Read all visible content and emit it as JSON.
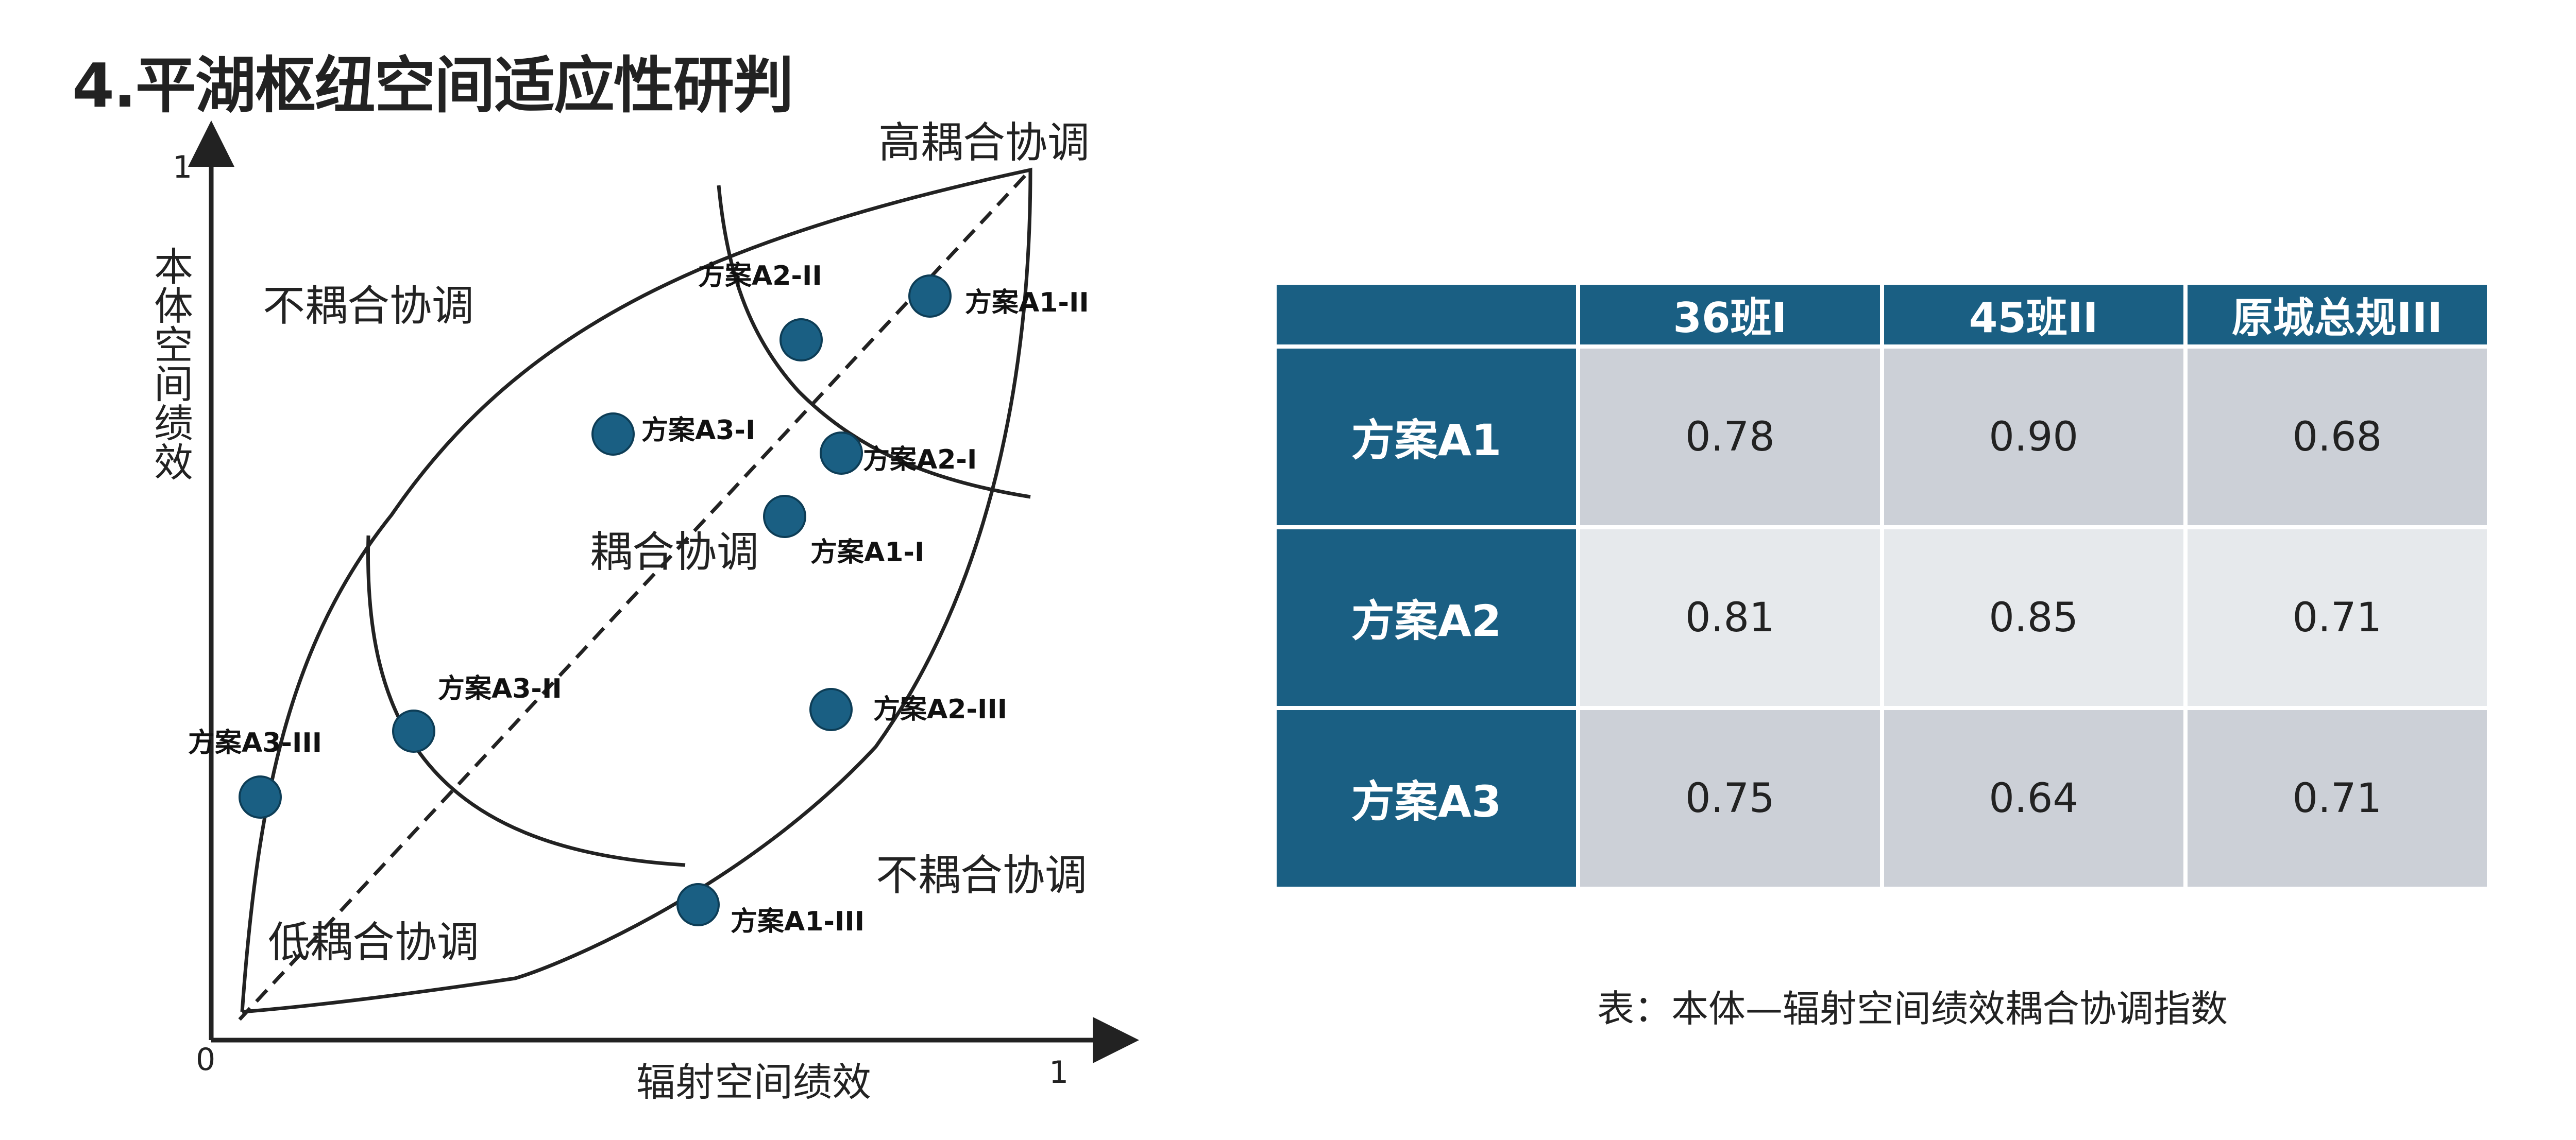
{
  "page_title": "4.平湖枢纽空间适应性研判",
  "diagram": {
    "axis": {
      "y_label": "本体空间绩效",
      "x_label": "辐射空间绩效",
      "origin_label": "0",
      "x_max_label": "1",
      "y_max_label": "1"
    },
    "regions": {
      "high": "高耦合协调",
      "not_coupled_top": "不耦合协调",
      "coupled": "耦合协调",
      "not_coupled_bottom": "不耦合协调",
      "low": "低耦合协调"
    },
    "colors": {
      "point": "#1a5f83",
      "point_stroke": "#0d3d56",
      "line": "#222222"
    },
    "points": [
      {
        "label": "方案A2-II"
      },
      {
        "label": "方案A1-II"
      },
      {
        "label": "方案A3-I"
      },
      {
        "label": "方案A2-I"
      },
      {
        "label": "方案A1-I"
      },
      {
        "label": "方案A3-II"
      },
      {
        "label": "方案A2-III"
      },
      {
        "label": "方案A3-III"
      },
      {
        "label": "方案A1-III"
      }
    ]
  },
  "table": {
    "header": [
      "",
      "36班I",
      "45班II",
      "原城总规III"
    ],
    "rows": [
      {
        "label": "方案A1",
        "values": [
          "0.78",
          "0.90",
          "0.68"
        ]
      },
      {
        "label": "方案A2",
        "values": [
          "0.81",
          "0.85",
          "0.71"
        ]
      },
      {
        "label": "方案A3",
        "values": [
          "0.75",
          "0.64",
          "0.71"
        ]
      }
    ],
    "colors": {
      "header_bg": "#1a5f83",
      "row_odd": "#ccd0d7",
      "row_even": "#e6e9ec"
    }
  },
  "caption": "表：本体—辐射空间绩效耦合协调指数"
}
